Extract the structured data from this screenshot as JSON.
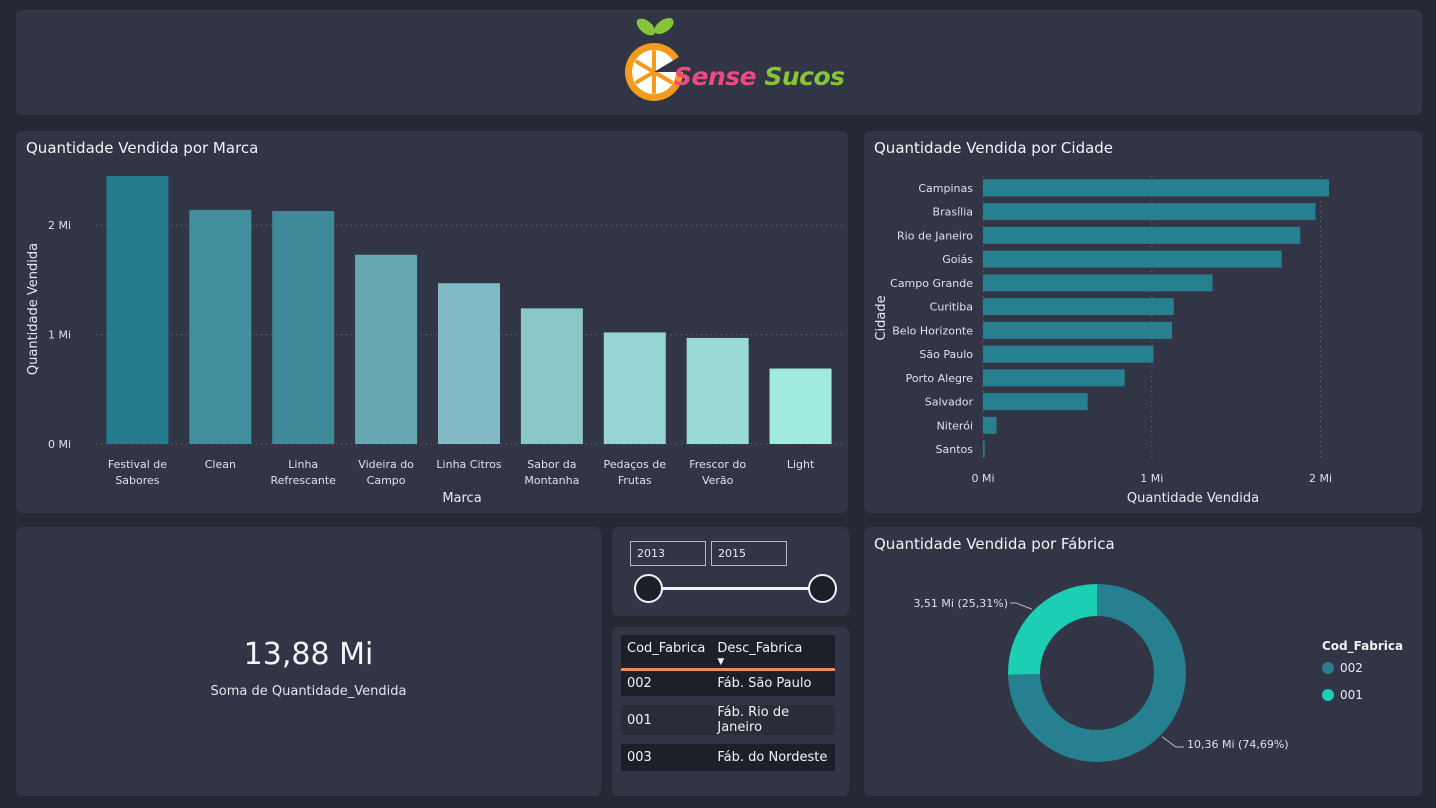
{
  "header": {
    "logo_sense": "Sense",
    "logo_sucos": "Sucos"
  },
  "brand_chart": {
    "title": "Quantidade Vendida por Marca",
    "chart_data": {
      "type": "bar",
      "title": "Quantidade Vendida por Marca",
      "xlabel": "Marca",
      "ylabel": "Quantidade Vendida",
      "categories": [
        [
          "Festival de",
          "Sabores"
        ],
        [
          "Clean"
        ],
        [
          "Linha",
          "Refrescante"
        ],
        [
          "Videira do",
          "Campo"
        ],
        [
          "Linha Citros"
        ],
        [
          "Sabor da",
          "Montanha"
        ],
        [
          "Pedaços de",
          "Frutas"
        ],
        [
          "Frescor do",
          "Verão"
        ],
        [
          "Light"
        ]
      ],
      "values": [
        2.45,
        2.14,
        2.13,
        1.73,
        1.47,
        1.24,
        1.02,
        0.97,
        0.69
      ],
      "colors": [
        "#237b8b",
        "#418e9c",
        "#3e8a98",
        "#67a8b3",
        "#81bac5",
        "#8bc6c9",
        "#96d4d6",
        "#9adbd8",
        "#a2eae0"
      ],
      "ylim": [
        0,
        2.45
      ],
      "yticks": [
        {
          "value": 0,
          "label": "0 Mi"
        },
        {
          "value": 1,
          "label": "1 Mi"
        },
        {
          "value": 2,
          "label": "2 Mi"
        }
      ],
      "grid": true
    }
  },
  "city_chart": {
    "title": "Quantidade Vendida por Cidade",
    "chart_data": {
      "type": "bar",
      "orientation": "horizontal",
      "title": "Quantidade Vendida por Cidade",
      "xlabel": "Quantidade Vendida",
      "ylabel": "Cidade",
      "categories": [
        "Campinas",
        "Brasília",
        "Rio de Janeiro",
        "Goiás",
        "Campo Grande",
        "Curitiba",
        "Belo Horizonte",
        "São Paulo",
        "Porto Alegre",
        "Salvador",
        "Niterói",
        "Santos"
      ],
      "values": [
        2.05,
        1.97,
        1.88,
        1.77,
        1.36,
        1.13,
        1.12,
        1.01,
        0.84,
        0.62,
        0.08,
        0.01
      ],
      "color": "#26808f",
      "xlim": [
        0,
        2.05
      ],
      "xticks": [
        {
          "value": 0,
          "label": "0 Mi"
        },
        {
          "value": 1,
          "label": "1 Mi"
        },
        {
          "value": 2,
          "label": "2 Mi"
        }
      ],
      "grid": true
    }
  },
  "kpi": {
    "value": "13,88 Mi",
    "label": "Soma de Quantidade_Vendida"
  },
  "year_slider": {
    "start": "2013",
    "end": "2015"
  },
  "factory_table": {
    "headers": [
      "Cod_Fabrica",
      "Desc_Fabrica"
    ],
    "rows": [
      [
        "002",
        "Fáb. São Paulo"
      ],
      [
        "001",
        "Fáb. Rio de Janeiro"
      ],
      [
        "003",
        "Fáb. do Nordeste"
      ]
    ]
  },
  "factory_chart": {
    "title": "Quantidade Vendida por Fábrica",
    "legend_title": "Cod_Fabrica",
    "chart_data": {
      "type": "pie",
      "subtype": "donut",
      "title": "Quantidade Vendida por Fábrica",
      "legend_title": "Cod_Fabrica",
      "slices": [
        {
          "name": "002",
          "value": 10.36,
          "label": "10,36 Mi (74,69%)",
          "color": "#26808f"
        },
        {
          "name": "001",
          "value": 3.51,
          "label": "3,51 Mi (25,31%)",
          "color": "#1ccfb4"
        }
      ]
    }
  }
}
